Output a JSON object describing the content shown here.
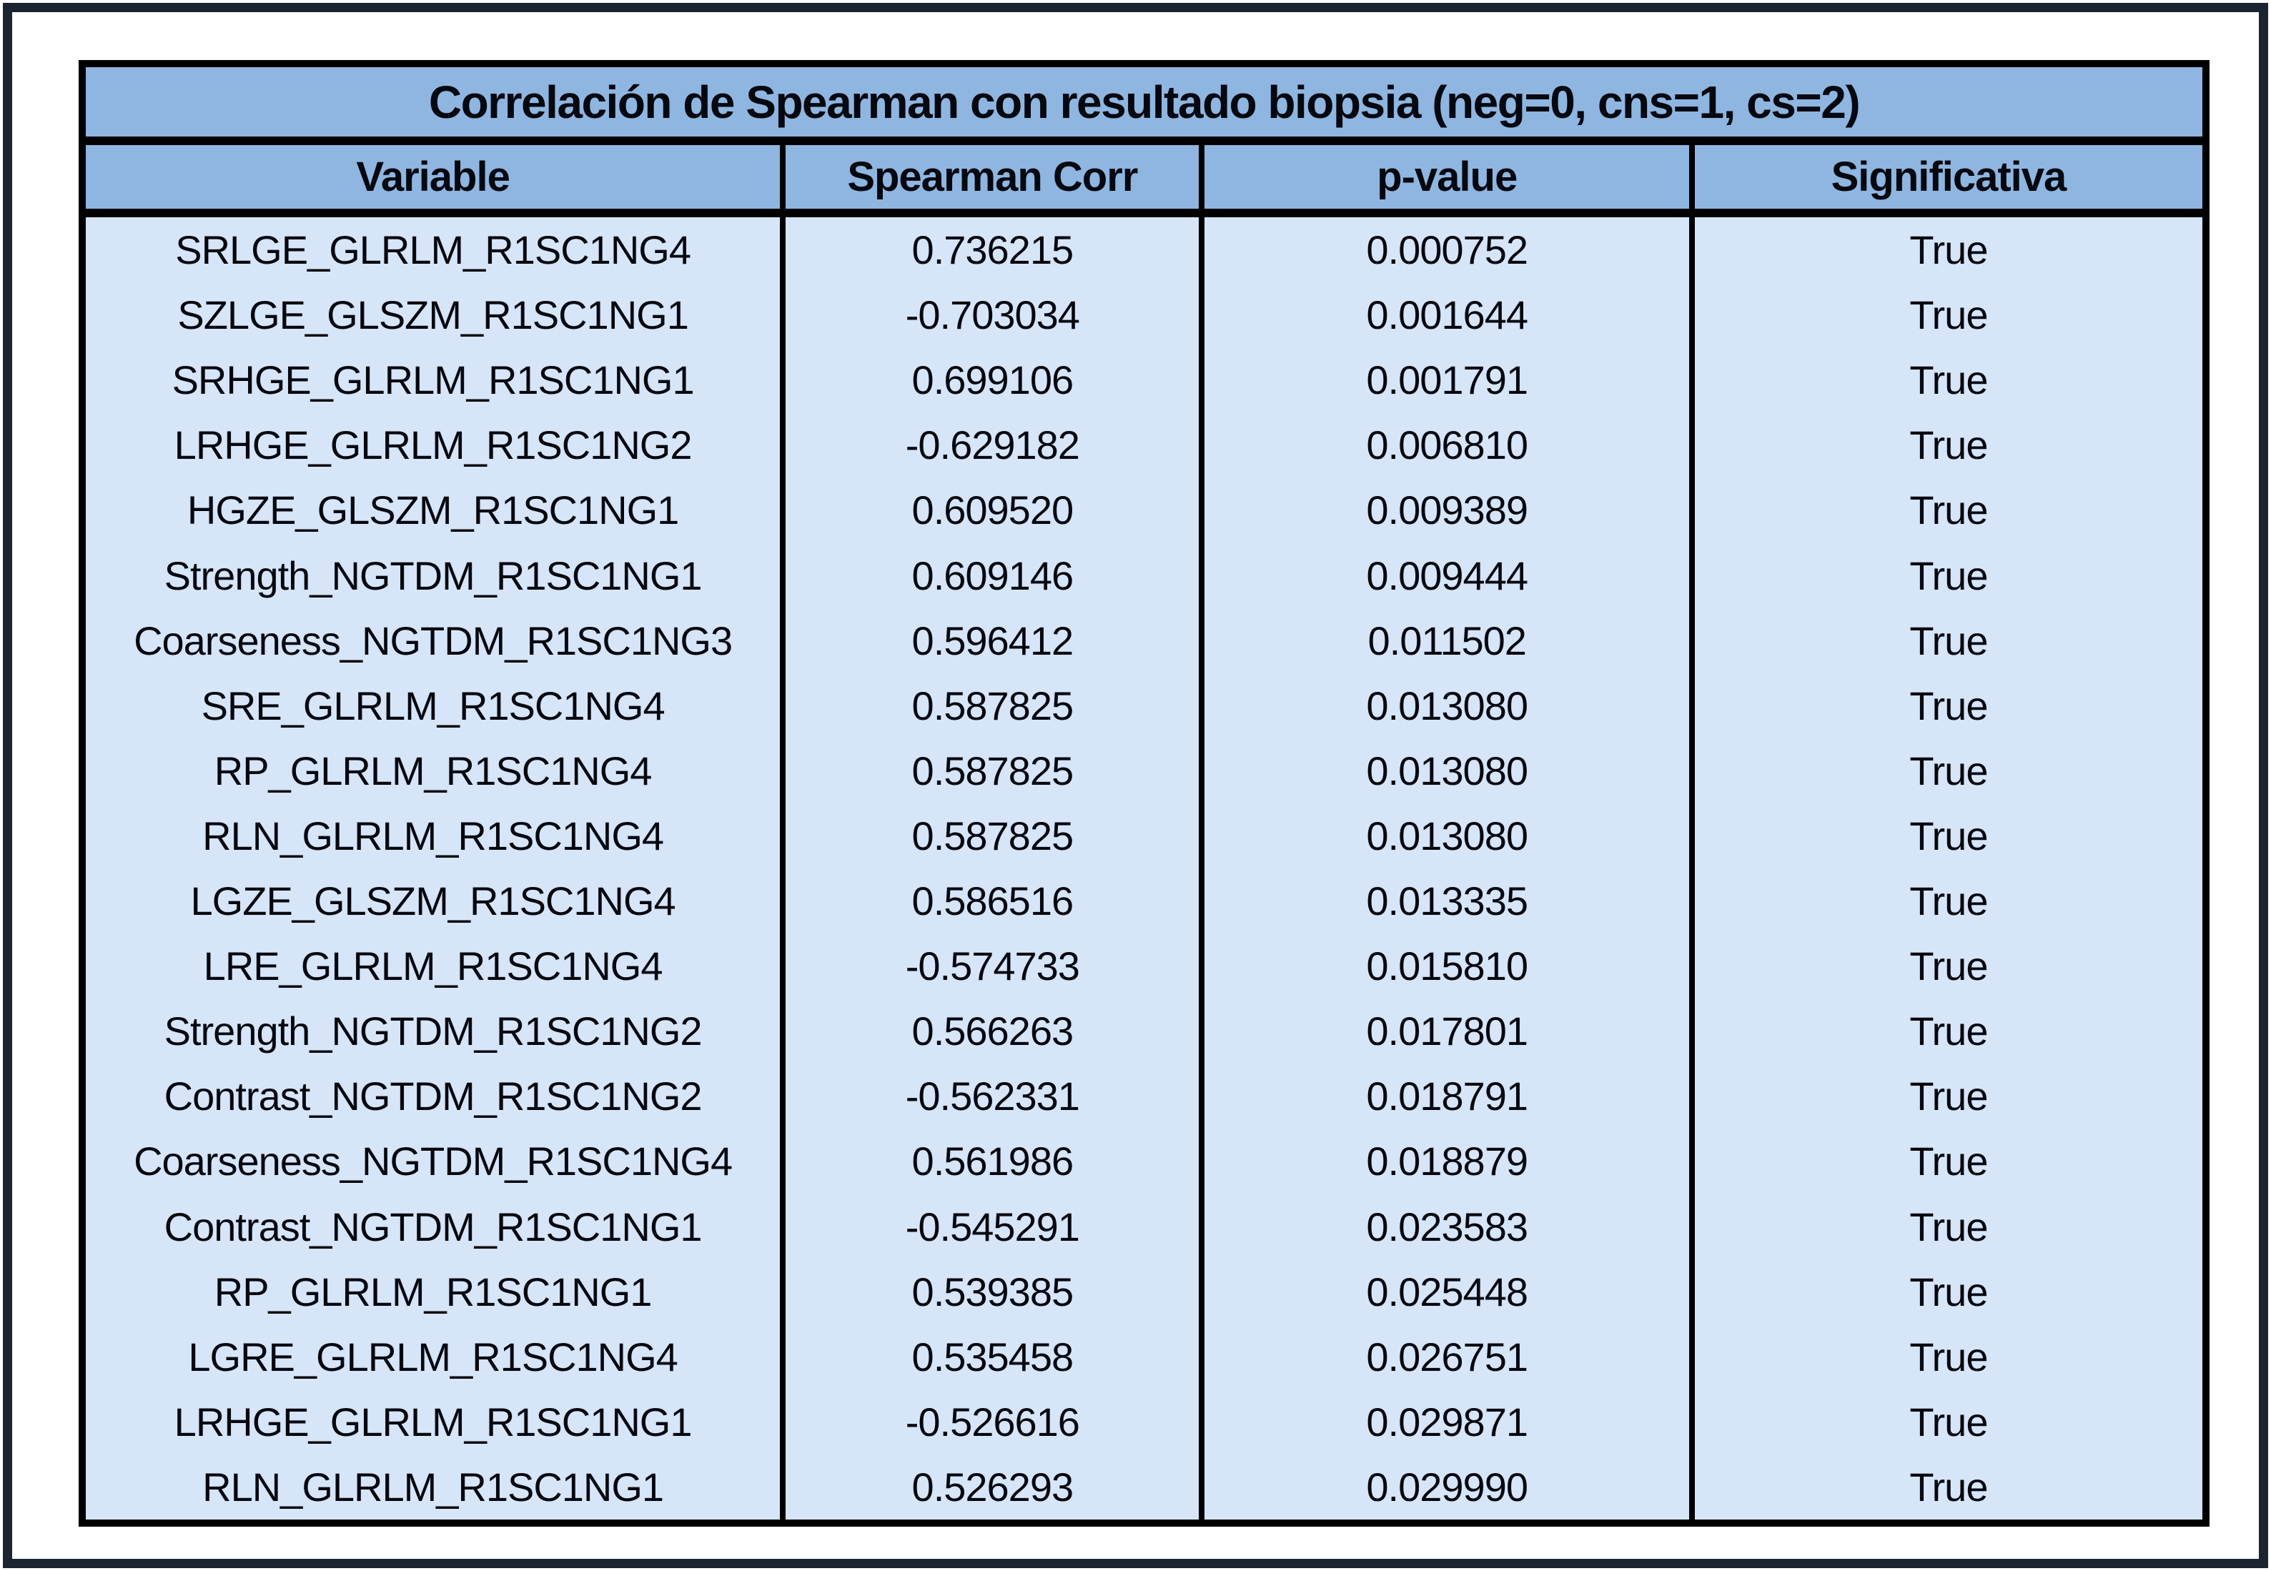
{
  "colors": {
    "outer_frame": "#1b2531",
    "table_border": "#000000",
    "header_bg": "#8eb6e0",
    "row_bg": "#d6e5f7",
    "text": "#060810"
  },
  "chart_data": {
    "type": "table",
    "title": "Correlación de Spearman con resultado biopsia (neg=0, cns=1, cs=2)",
    "columns": [
      "Variable",
      "Spearman Corr",
      "p-value",
      "Significativa"
    ],
    "rows": [
      [
        "SRLGE_GLRLM_R1SC1NG4",
        "0.736215",
        "0.000752",
        "True"
      ],
      [
        "SZLGE_GLSZM_R1SC1NG1",
        "-0.703034",
        "0.001644",
        "True"
      ],
      [
        "SRHGE_GLRLM_R1SC1NG1",
        "0.699106",
        "0.001791",
        "True"
      ],
      [
        "LRHGE_GLRLM_R1SC1NG2",
        "-0.629182",
        "0.006810",
        "True"
      ],
      [
        "HGZE_GLSZM_R1SC1NG1",
        "0.609520",
        "0.009389",
        "True"
      ],
      [
        "Strength_NGTDM_R1SC1NG1",
        "0.609146",
        "0.009444",
        "True"
      ],
      [
        "Coarseness_NGTDM_R1SC1NG3",
        "0.596412",
        "0.011502",
        "True"
      ],
      [
        "SRE_GLRLM_R1SC1NG4",
        "0.587825",
        "0.013080",
        "True"
      ],
      [
        "RP_GLRLM_R1SC1NG4",
        "0.587825",
        "0.013080",
        "True"
      ],
      [
        "RLN_GLRLM_R1SC1NG4",
        "0.587825",
        "0.013080",
        "True"
      ],
      [
        "LGZE_GLSZM_R1SC1NG4",
        "0.586516",
        "0.013335",
        "True"
      ],
      [
        "LRE_GLRLM_R1SC1NG4",
        "-0.574733",
        "0.015810",
        "True"
      ],
      [
        "Strength_NGTDM_R1SC1NG2",
        "0.566263",
        "0.017801",
        "True"
      ],
      [
        "Contrast_NGTDM_R1SC1NG2",
        "-0.562331",
        "0.018791",
        "True"
      ],
      [
        "Coarseness_NGTDM_R1SC1NG4",
        "0.561986",
        "0.018879",
        "True"
      ],
      [
        "Contrast_NGTDM_R1SC1NG1",
        "-0.545291",
        "0.023583",
        "True"
      ],
      [
        "RP_GLRLM_R1SC1NG1",
        "0.539385",
        "0.025448",
        "True"
      ],
      [
        "LGRE_GLRLM_R1SC1NG4",
        "0.535458",
        "0.026751",
        "True"
      ],
      [
        "LRHGE_GLRLM_R1SC1NG1",
        "-0.526616",
        "0.029871",
        "True"
      ],
      [
        "RLN_GLRLM_R1SC1NG1",
        "0.526293",
        "0.029990",
        "True"
      ]
    ]
  }
}
